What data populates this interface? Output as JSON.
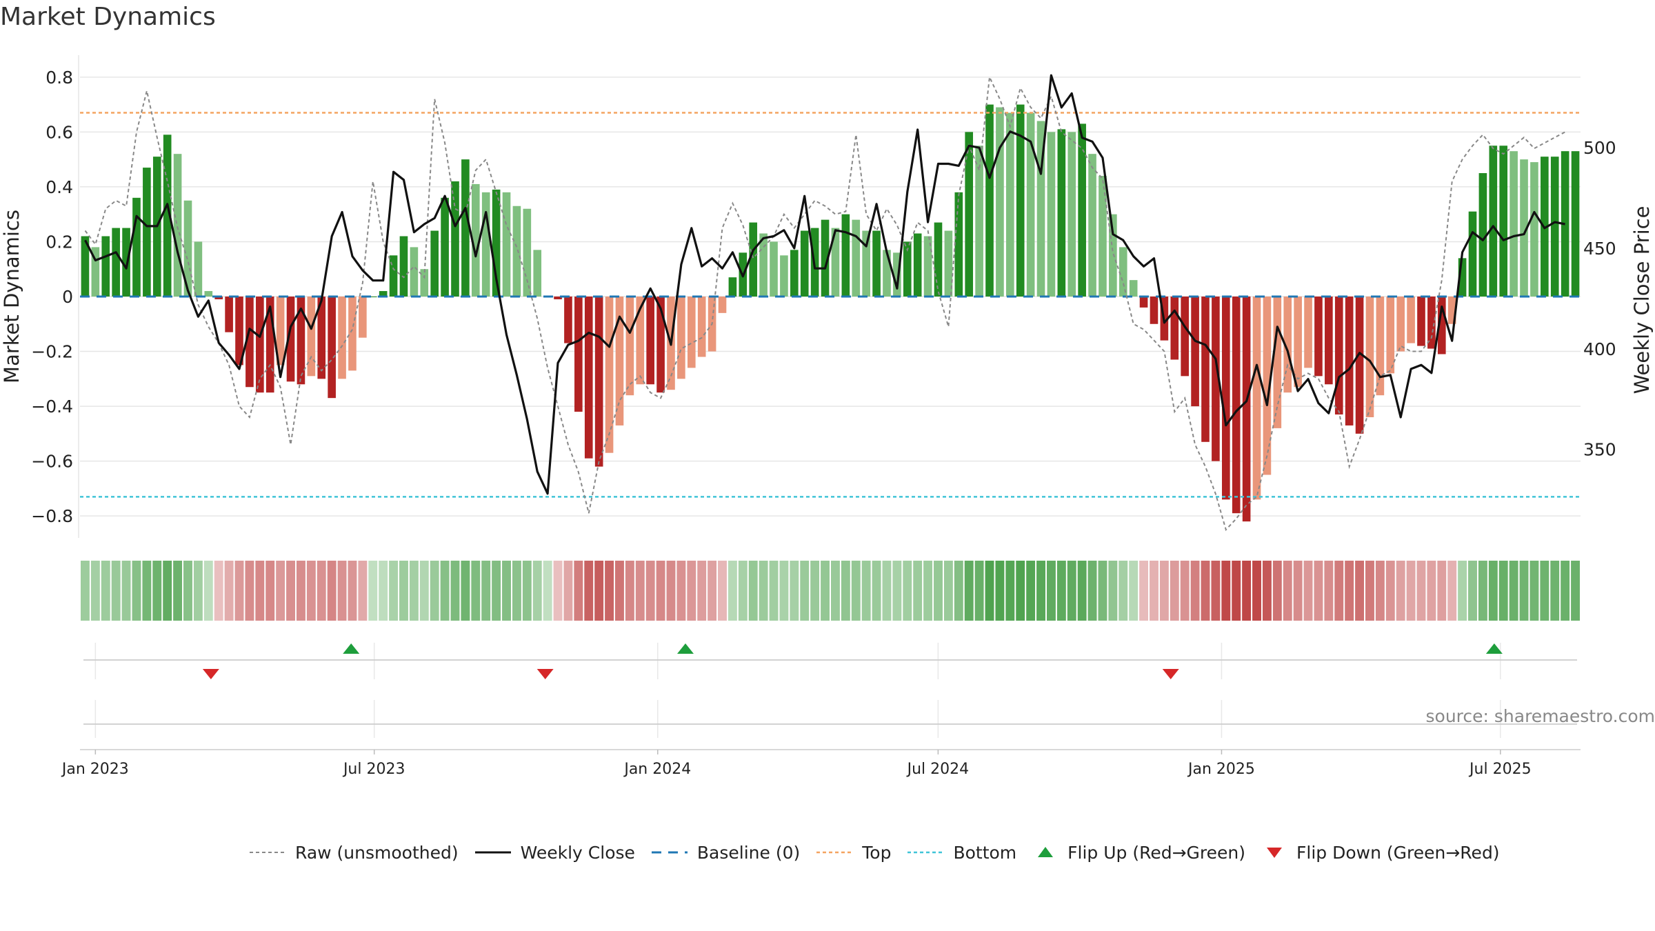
{
  "chart_data": {
    "type": "bar",
    "title": "Market Dynamics",
    "source": "source: sharemaestro.com",
    "left_axis": {
      "label": "Market Dynamics",
      "ylim": [
        -0.88,
        0.88
      ],
      "ticks": [
        0.8,
        0.6,
        0.4,
        0.2,
        0,
        -0.2,
        -0.4,
        -0.6,
        -0.8
      ],
      "tick_labels": [
        "0.8",
        "0.6",
        "0.4",
        "0.2",
        "0",
        "−0.2",
        "−0.4",
        "−0.6",
        "−0.8"
      ]
    },
    "right_axis": {
      "label": "Weekly Close Price",
      "ylim": [
        306,
        546
      ],
      "ticks": [
        500,
        450,
        400,
        350
      ],
      "tick_labels": [
        "500",
        "450",
        "400",
        "350"
      ]
    },
    "x_ticks": [
      "Jan 2023",
      "Jul 2023",
      "Jan 2024",
      "Jul 2024",
      "Jan 2025",
      "Jul 2025"
    ],
    "grid": true,
    "x_start_date": "2022-12-22",
    "x_end_date": "2025-08-22",
    "tick_dates": [
      "2023-01-01",
      "2023-07-01",
      "2024-01-01",
      "2024-07-01",
      "2025-01-01",
      "2025-07-01"
    ],
    "reference_lines": {
      "top": 0.67,
      "bottom": -0.73,
      "baseline": 0
    },
    "colors": {
      "strong_green": "#228b22",
      "light_green": "#7fbf7f",
      "strong_red": "#b22222",
      "light_red": "#e9967a",
      "close": "#111111",
      "raw": "#888888",
      "top": "#f4a460",
      "bottom": "#40c4d8",
      "baseline": "#1f77b4",
      "flip_up": "#1e9e3c",
      "flip_down": "#d62728"
    },
    "bars": [
      0.22,
      0.18,
      0.22,
      0.25,
      0.25,
      0.36,
      0.47,
      0.51,
      0.59,
      0.52,
      0.35,
      0.2,
      0.02,
      -0.01,
      -0.13,
      -0.25,
      -0.33,
      -0.35,
      -0.35,
      -0.25,
      -0.31,
      -0.32,
      -0.29,
      -0.3,
      -0.37,
      -0.3,
      -0.27,
      -0.15,
      0.0,
      0.02,
      0.15,
      0.22,
      0.18,
      0.1,
      0.24,
      0.36,
      0.42,
      0.5,
      0.41,
      0.38,
      0.39,
      0.38,
      0.33,
      0.32,
      0.17,
      0.0,
      -0.01,
      -0.17,
      -0.42,
      -0.59,
      -0.62,
      -0.57,
      -0.47,
      -0.36,
      -0.32,
      -0.32,
      -0.35,
      -0.34,
      -0.3,
      -0.26,
      -0.22,
      -0.2,
      -0.06,
      0.07,
      0.16,
      0.27,
      0.23,
      0.2,
      0.15,
      0.17,
      0.24,
      0.25,
      0.28,
      0.25,
      0.3,
      0.28,
      0.24,
      0.24,
      0.17,
      0.16,
      0.2,
      0.23,
      0.22,
      0.27,
      0.24,
      0.38,
      0.6,
      0.55,
      0.7,
      0.69,
      0.67,
      0.7,
      0.67,
      0.64,
      0.6,
      0.61,
      0.6,
      0.63,
      0.52,
      0.44,
      0.3,
      0.18,
      0.06,
      -0.04,
      -0.1,
      -0.16,
      -0.23,
      -0.29,
      -0.4,
      -0.53,
      -0.6,
      -0.74,
      -0.79,
      -0.82,
      -0.74,
      -0.65,
      -0.48,
      -0.35,
      -0.33,
      -0.26,
      -0.29,
      -0.32,
      -0.43,
      -0.47,
      -0.5,
      -0.44,
      -0.36,
      -0.28,
      -0.2,
      -0.17,
      -0.18,
      -0.19,
      -0.21,
      -0.1,
      0.14,
      0.31,
      0.45,
      0.55,
      0.55,
      0.53,
      0.5,
      0.49,
      0.51,
      0.51,
      0.53,
      0.53
    ],
    "raw": [
      0.24,
      0.19,
      0.32,
      0.35,
      0.33,
      0.6,
      0.75,
      0.58,
      0.42,
      0.25,
      0.13,
      -0.03,
      -0.11,
      -0.17,
      -0.25,
      -0.4,
      -0.44,
      -0.3,
      -0.25,
      -0.33,
      -0.54,
      -0.29,
      -0.22,
      -0.27,
      -0.23,
      -0.18,
      -0.12,
      0.05,
      0.42,
      0.2,
      0.1,
      0.07,
      0.11,
      0.07,
      0.72,
      0.56,
      0.32,
      0.3,
      0.46,
      0.5,
      0.38,
      0.26,
      0.18,
      0.06,
      -0.08,
      -0.26,
      -0.4,
      -0.54,
      -0.64,
      -0.79,
      -0.6,
      -0.5,
      -0.38,
      -0.32,
      -0.29,
      -0.35,
      -0.37,
      -0.29,
      -0.19,
      -0.17,
      -0.15,
      -0.1,
      0.25,
      0.34,
      0.26,
      0.14,
      0.18,
      0.22,
      0.3,
      0.25,
      0.3,
      0.35,
      0.33,
      0.3,
      0.31,
      0.59,
      0.3,
      0.24,
      0.32,
      0.26,
      0.17,
      0.27,
      0.24,
      0.02,
      -0.11,
      0.37,
      0.55,
      0.46,
      0.8,
      0.72,
      0.62,
      0.76,
      0.69,
      0.65,
      0.73,
      0.6,
      0.57,
      0.54,
      0.47,
      0.43,
      0.16,
      0.05,
      -0.1,
      -0.12,
      -0.16,
      -0.2,
      -0.42,
      -0.37,
      -0.54,
      -0.62,
      -0.72,
      -0.85,
      -0.81,
      -0.76,
      -0.73,
      -0.58,
      -0.4,
      -0.25,
      -0.3,
      -0.28,
      -0.3,
      -0.37,
      -0.42,
      -0.62,
      -0.52,
      -0.41,
      -0.29,
      -0.27,
      -0.18,
      -0.2,
      -0.2,
      -0.15,
      0.06,
      0.42,
      0.5,
      0.55,
      0.59,
      0.54,
      0.52,
      0.55,
      0.58,
      0.54,
      0.56,
      0.58,
      0.6
    ],
    "weekly_close": [
      454,
      444,
      446,
      448,
      440,
      466,
      461,
      461,
      472,
      448,
      429,
      416,
      424,
      403,
      397,
      390,
      410,
      406,
      421,
      386,
      411,
      420,
      410,
      424,
      456,
      468,
      446,
      439,
      434,
      434,
      488,
      484,
      458,
      462,
      465,
      476,
      461,
      470,
      446,
      468,
      435,
      407,
      387,
      365,
      339,
      328,
      393,
      402,
      404,
      408,
      406,
      401,
      416,
      408,
      420,
      430,
      420,
      402,
      442,
      460,
      441,
      445,
      440,
      448,
      436,
      449,
      455,
      456,
      459,
      450,
      476,
      440,
      440,
      459,
      458,
      456,
      451,
      472,
      448,
      430,
      478,
      509,
      463,
      492,
      492,
      491,
      501,
      500,
      485,
      500,
      508,
      506,
      503,
      487,
      536,
      520,
      527,
      505,
      503,
      495,
      457,
      454,
      446,
      441,
      445,
      413,
      419,
      411,
      404,
      402,
      395,
      362,
      369,
      374,
      392,
      372,
      411,
      399,
      379,
      385,
      373,
      368,
      386,
      390,
      398,
      394,
      386,
      387,
      366,
      390,
      392,
      388,
      421,
      404,
      448,
      458,
      454,
      461,
      454,
      456,
      457,
      468,
      460,
      463,
      462
    ],
    "flip_up_dates": [
      "2023-06-16",
      "2024-01-19",
      "2025-06-27"
    ],
    "flip_down_dates": [
      "2023-03-17",
      "2023-10-20",
      "2024-11-29"
    ],
    "strip_legend_note": "",
    "legend": [
      "Raw (unsmoothed)",
      "Weekly Close",
      "Baseline (0)",
      "Top",
      "Bottom",
      "Flip Up (Red→Green)",
      "Flip Down (Green→Red)"
    ]
  }
}
